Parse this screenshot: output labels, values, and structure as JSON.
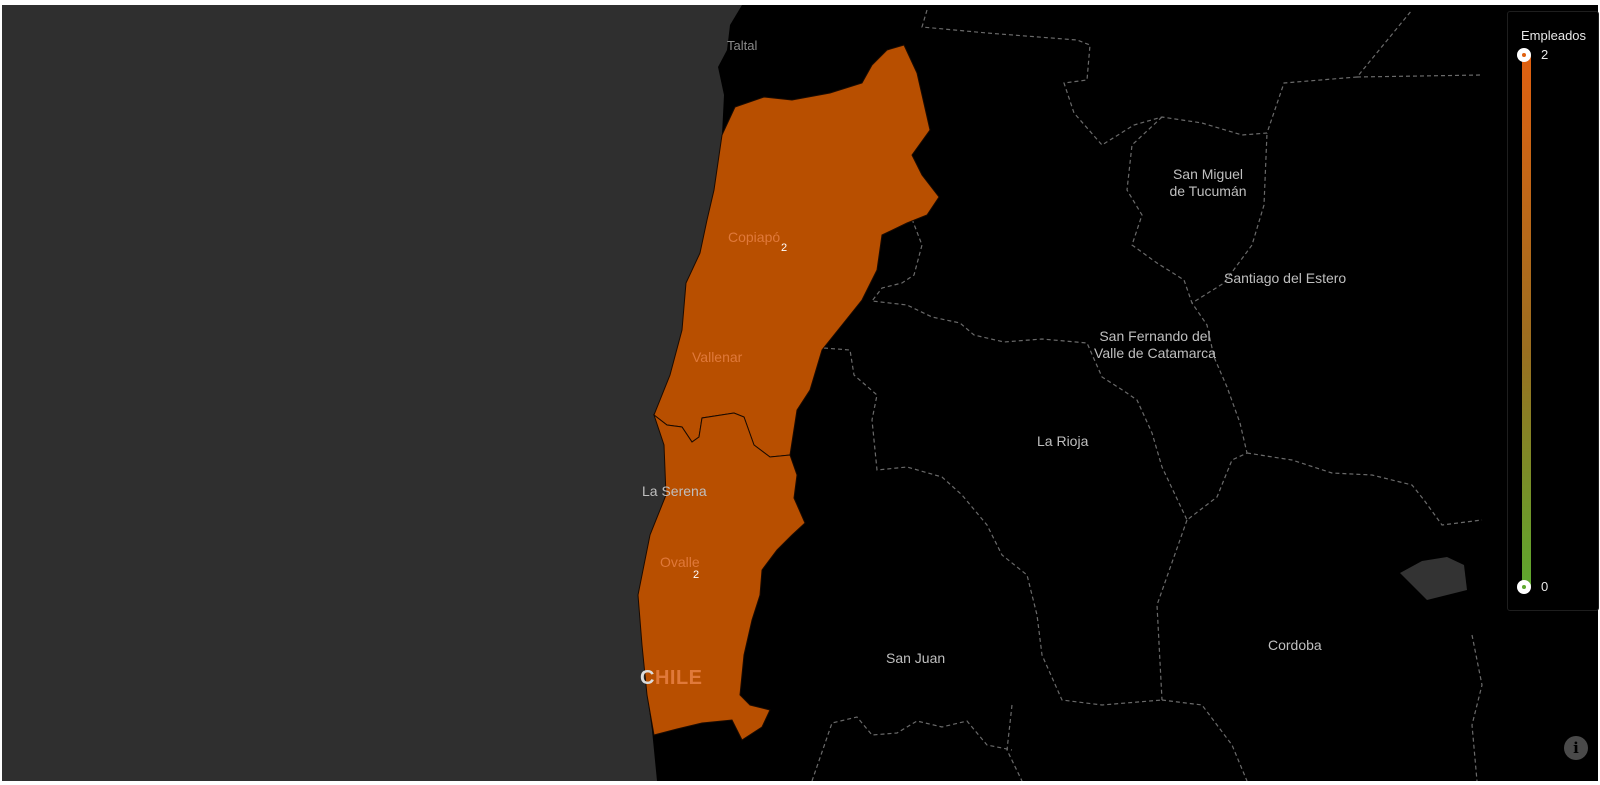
{
  "map": {
    "metric_title": "Empleados",
    "legend": {
      "max_label": "2",
      "min_label": "0",
      "max_value": 2,
      "min_value": 0,
      "max_color": "#e06010",
      "min_color": "#5ea82e"
    },
    "region_fill": "#b84f00",
    "ocean_color": "#2f2f2f",
    "land_color": "#000000",
    "country_label": {
      "first": "C",
      "rest": "HILE"
    },
    "cities": {
      "taltal": "Taltal",
      "copiapo": "Copiapó",
      "vallenar": "Vallenar",
      "la_serena": "La Serena",
      "ovalle": "Ovalle",
      "tucuman_1": "San Miguel",
      "tucuman_2": "de Tucumán",
      "santiago_estero": "Santiago del Estero",
      "catamarca_1": "San Fernando del",
      "catamarca_2": "Valle de Catamarca",
      "la_rioja": "La Rioja",
      "san_juan": "San Juan",
      "cordoba": "Cordoba"
    },
    "counts": {
      "atacama": "2",
      "coquimbo": "2"
    },
    "info_icon": "i"
  }
}
